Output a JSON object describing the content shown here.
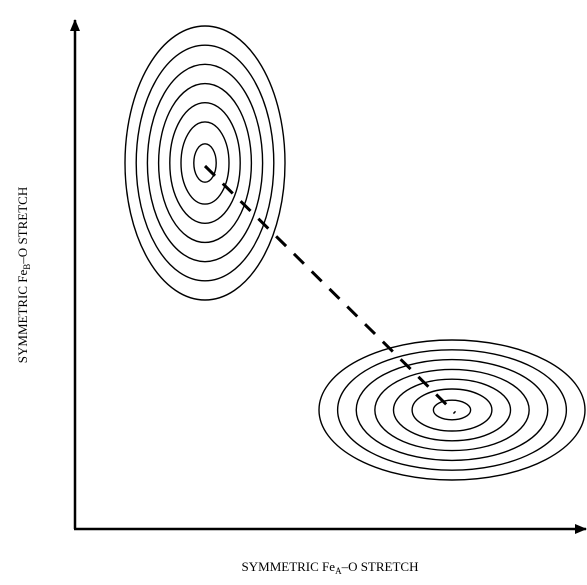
{
  "x_axis_label": {
    "prefix": "SYMMETRIC Fe",
    "subscript": "A",
    "suffix": "–O STRETCH"
  },
  "y_axis_label": {
    "prefix": "SYMMETRIC Fe",
    "subscript": "B",
    "suffix": "–O STRETCH"
  }
}
